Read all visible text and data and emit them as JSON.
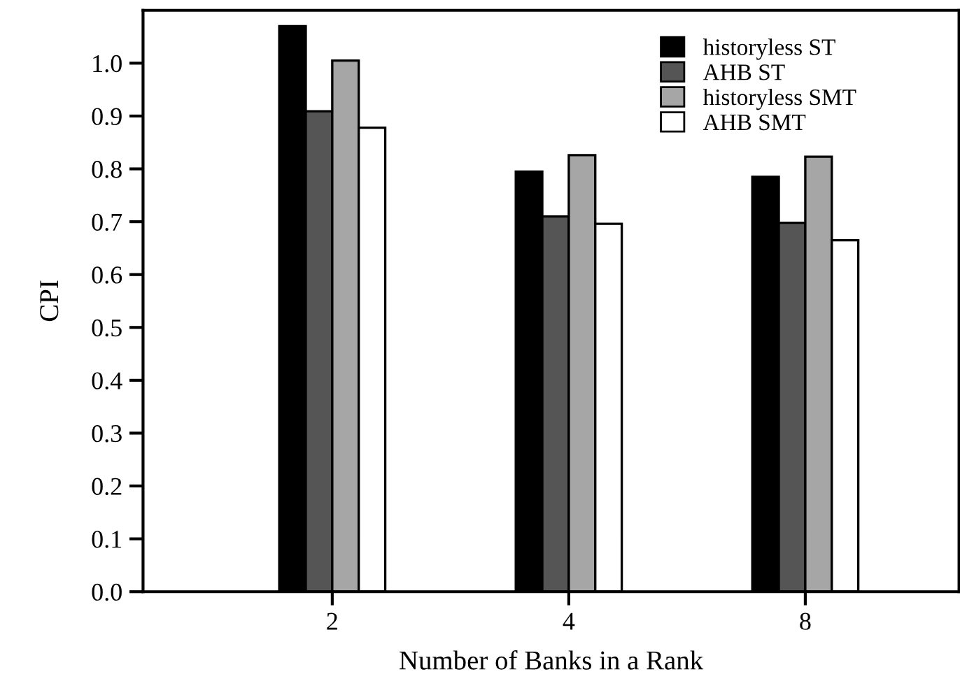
{
  "chart_data": {
    "type": "bar",
    "xlabel": "Number of Banks in a Rank",
    "ylabel": "CPI",
    "categories": [
      "2",
      "4",
      "8"
    ],
    "series": [
      {
        "name": "historyless ST",
        "color": "#000000",
        "values": [
          1.07,
          0.795,
          0.785
        ]
      },
      {
        "name": "AHB ST",
        "color": "#555555",
        "values": [
          0.909,
          0.71,
          0.698
        ]
      },
      {
        "name": "historyless SMT",
        "color": "#a6a6a6",
        "values": [
          1.005,
          0.826,
          0.823
        ]
      },
      {
        "name": "AHB SMT",
        "color": "#ffffff",
        "values": [
          0.878,
          0.696,
          0.665
        ]
      }
    ],
    "ylim": [
      0,
      1.1
    ],
    "yticks": [
      {
        "value": 0,
        "label": "0.0"
      },
      {
        "value": 0.1,
        "label": "0.1"
      },
      {
        "value": 0.2,
        "label": "0.2"
      },
      {
        "value": 0.3,
        "label": "0.3"
      },
      {
        "value": 0.4,
        "label": "0.4"
      },
      {
        "value": 0.5,
        "label": "0.5"
      },
      {
        "value": 0.6,
        "label": "0.6"
      },
      {
        "value": 0.7,
        "label": "0.7"
      },
      {
        "value": 0.8,
        "label": "0.8"
      },
      {
        "value": 0.9,
        "label": "0.9"
      },
      {
        "value": 1.0,
        "label": "1.0"
      }
    ],
    "grid": false,
    "legend": "top right"
  }
}
